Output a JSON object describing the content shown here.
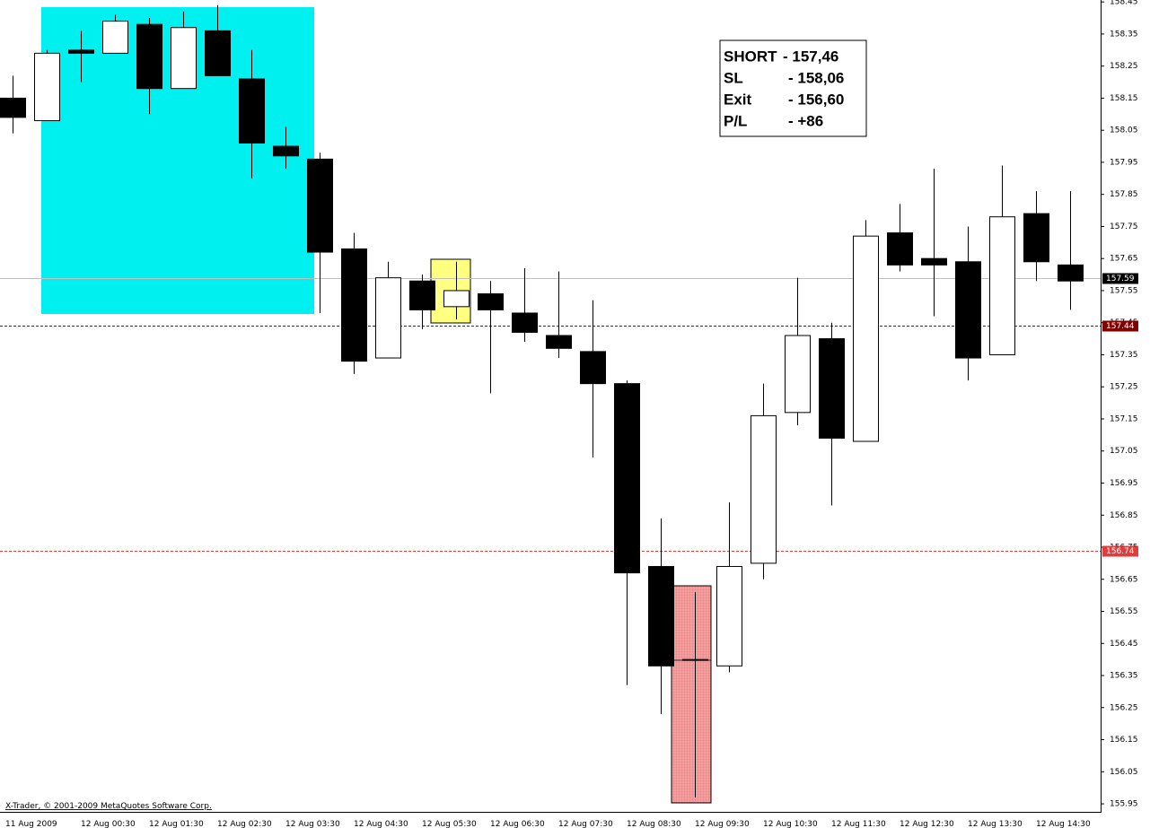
{
  "chart_data": {
    "type": "candlestick",
    "categories": [
      "11 Aug 2009",
      null,
      "12 Aug 00:30",
      null,
      "12 Aug 01:30",
      null,
      "12 Aug 02:30",
      null,
      "12 Aug 03:30",
      null,
      "12 Aug 04:30",
      null,
      "12 Aug 05:30",
      null,
      "12 Aug 06:30",
      null,
      "12 Aug 07:30",
      null,
      "12 Aug 08:30",
      null,
      "12 Aug 09:30",
      null,
      "12 Aug 10:30",
      null,
      "12 Aug 11:30",
      null,
      "12 Aug 12:30",
      null,
      "12 Aug 13:30",
      null,
      "12 Aug 14:30",
      null
    ],
    "open": [
      158.15,
      158.08,
      158.3,
      158.29,
      158.38,
      158.18,
      158.36,
      158.21,
      158.0,
      157.96,
      157.68,
      157.34,
      157.58,
      157.5,
      157.54,
      157.48,
      157.41,
      157.36,
      157.26,
      156.69,
      156.4,
      156.38,
      156.7,
      157.17,
      157.4,
      157.08,
      157.73,
      157.65,
      157.64,
      157.35,
      157.79,
      157.63
    ],
    "high": [
      158.22,
      158.3,
      158.36,
      158.41,
      158.4,
      158.42,
      158.44,
      158.3,
      158.06,
      157.98,
      157.73,
      157.64,
      157.6,
      157.64,
      157.58,
      157.62,
      157.61,
      157.52,
      157.27,
      156.84,
      156.61,
      156.89,
      157.26,
      157.59,
      157.45,
      157.77,
      157.82,
      157.93,
      157.75,
      157.94,
      157.86,
      157.86
    ],
    "low": [
      158.04,
      158.08,
      158.2,
      158.29,
      158.1,
      158.18,
      158.22,
      157.9,
      157.93,
      157.48,
      157.29,
      157.34,
      157.43,
      157.46,
      157.23,
      157.39,
      157.34,
      157.03,
      156.32,
      156.23,
      155.97,
      156.36,
      156.65,
      157.13,
      156.88,
      157.08,
      157.61,
      157.47,
      157.27,
      157.35,
      157.58,
      157.49
    ],
    "close": [
      158.09,
      158.29,
      158.29,
      158.39,
      158.18,
      158.37,
      158.22,
      158.01,
      157.97,
      157.67,
      157.33,
      157.59,
      157.49,
      157.55,
      157.49,
      157.42,
      157.37,
      157.26,
      156.67,
      156.38,
      156.4,
      156.69,
      157.16,
      157.41,
      157.09,
      157.72,
      157.63,
      157.63,
      157.34,
      157.78,
      157.64,
      157.58
    ],
    "ylim": [
      155.925,
      158.456
    ],
    "yticks": [
      158.45,
      158.35,
      158.25,
      158.15,
      158.05,
      157.95,
      157.85,
      157.75,
      157.65,
      157.55,
      157.45,
      157.35,
      157.25,
      157.15,
      157.05,
      156.95,
      156.85,
      156.75,
      156.65,
      156.55,
      156.45,
      156.35,
      156.25,
      156.15,
      156.05,
      155.95
    ],
    "price_lines": [
      {
        "value": 157.59,
        "color": "#000000",
        "line_color": "#c0c0c0",
        "style": "solid"
      },
      {
        "value": 157.44,
        "color": "#800000",
        "line_color": "#a00000",
        "style": "dashed"
      },
      {
        "value": 156.74,
        "color": "#e03c3c",
        "line_color": "#e03c3c",
        "style": "dashed"
      }
    ],
    "info_box": [
      [
        "SHORT",
        "- 157,46"
      ],
      [
        "SL",
        "- 158,06"
      ],
      [
        "Exit",
        "- 156,60"
      ],
      [
        "P/L",
        "- +86"
      ]
    ],
    "copyright": "X-Trader, © 2001-2009 MetaQuotes Software Corp."
  }
}
